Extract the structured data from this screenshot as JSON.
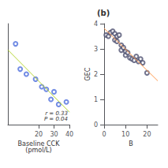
{
  "chart_data": [
    {
      "type": "scatter",
      "xlabel": "Baseline CCK\n(pmol/L)",
      "xlim": [
        0,
        40
      ],
      "ylim": [
        1.0,
        5.0
      ],
      "xticks": [
        20,
        30,
        40
      ],
      "tick_labels": "x",
      "grid": false,
      "annotation": "r = 0.33\nP = 0.04",
      "series": [
        {
          "type": "scatter",
          "x": [
            5,
            8,
            12,
            18,
            22,
            25,
            28,
            30,
            33,
            38
          ],
          "values": [
            4.2,
            3.2,
            3.0,
            2.8,
            2.5,
            2.4,
            2.0,
            2.3,
            1.8,
            1.9
          ]
        },
        {
          "type": "line",
          "x": [
            0,
            40
          ],
          "values": [
            3.9598,
            1.4944
          ]
        }
      ]
    },
    {
      "type": "scatter",
      "title": "(b)",
      "xlabel": "B",
      "ylabel": "GEC",
      "xlim": [
        0,
        25
      ],
      "ylim": [
        0,
        4
      ],
      "xticks": [
        0,
        10,
        20
      ],
      "yticks": [
        0,
        1,
        2,
        3,
        4
      ],
      "grid": false,
      "series": [
        {
          "type": "scatter",
          "x": [
            1,
            2,
            3,
            4,
            5,
            5,
            6,
            6,
            7,
            8,
            8,
            9,
            10,
            10,
            11,
            12,
            13,
            14,
            15,
            16,
            17,
            18,
            20
          ],
          "values": [
            3.55,
            3.5,
            3.65,
            3.7,
            3.6,
            3.35,
            3.5,
            3.3,
            3.55,
            3.15,
            2.95,
            3.05,
            2.9,
            2.75,
            2.85,
            2.65,
            2.6,
            2.55,
            2.7,
            2.5,
            2.6,
            2.45,
            2.05
          ]
        },
        {
          "type": "line",
          "x": [
            0,
            25
          ],
          "values": [
            3.8157,
            1.735
          ]
        }
      ]
    }
  ]
}
